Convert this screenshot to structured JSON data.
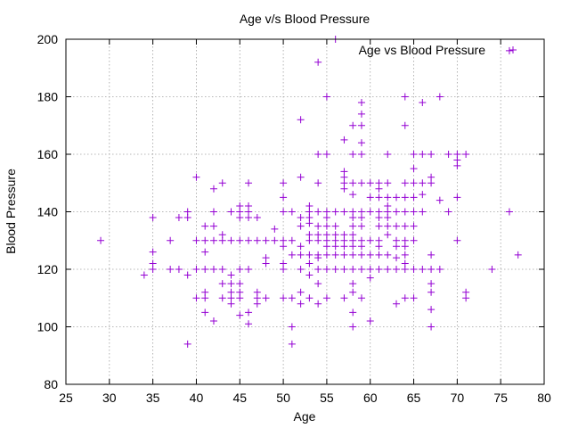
{
  "chart_data": {
    "type": "scatter",
    "title": "Age v/s Blood Pressure",
    "xlabel": "Age",
    "ylabel": "Blood Pressure",
    "xlim": [
      25,
      80
    ],
    "ylim": [
      80,
      200
    ],
    "xticks": [
      25,
      30,
      35,
      40,
      45,
      50,
      55,
      60,
      65,
      70,
      75,
      80
    ],
    "yticks": [
      80,
      100,
      120,
      140,
      160,
      180,
      200
    ],
    "grid": true,
    "legend": "top-right",
    "series": [
      {
        "name": "Age vs Blood Pressure",
        "color": "#9400d3",
        "marker": "plus",
        "points": [
          [
            29,
            130
          ],
          [
            34,
            118
          ],
          [
            35,
            120
          ],
          [
            35,
            122
          ],
          [
            35,
            126
          ],
          [
            35,
            138
          ],
          [
            37,
            120
          ],
          [
            37,
            130
          ],
          [
            38,
            120
          ],
          [
            38,
            138
          ],
          [
            39,
            94
          ],
          [
            39,
            118
          ],
          [
            39,
            138
          ],
          [
            39,
            140
          ],
          [
            40,
            110
          ],
          [
            40,
            120
          ],
          [
            40,
            130
          ],
          [
            40,
            152
          ],
          [
            41,
            105
          ],
          [
            41,
            110
          ],
          [
            41,
            112
          ],
          [
            41,
            120
          ],
          [
            41,
            126
          ],
          [
            41,
            130
          ],
          [
            41,
            135
          ],
          [
            42,
            102
          ],
          [
            42,
            120
          ],
          [
            42,
            130
          ],
          [
            42,
            135
          ],
          [
            42,
            140
          ],
          [
            42,
            148
          ],
          [
            43,
            110
          ],
          [
            43,
            115
          ],
          [
            43,
            120
          ],
          [
            43,
            130
          ],
          [
            43,
            132
          ],
          [
            43,
            150
          ],
          [
            44,
            108
          ],
          [
            44,
            110
          ],
          [
            44,
            112
          ],
          [
            44,
            115
          ],
          [
            44,
            118
          ],
          [
            44,
            130
          ],
          [
            44,
            140
          ],
          [
            45,
            104
          ],
          [
            45,
            110
          ],
          [
            45,
            112
          ],
          [
            45,
            115
          ],
          [
            45,
            120
          ],
          [
            45,
            130
          ],
          [
            45,
            138
          ],
          [
            45,
            140
          ],
          [
            45,
            142
          ],
          [
            46,
            101
          ],
          [
            46,
            105
          ],
          [
            46,
            120
          ],
          [
            46,
            130
          ],
          [
            46,
            138
          ],
          [
            46,
            140
          ],
          [
            46,
            142
          ],
          [
            46,
            150
          ],
          [
            47,
            108
          ],
          [
            47,
            110
          ],
          [
            47,
            112
          ],
          [
            47,
            130
          ],
          [
            47,
            138
          ],
          [
            48,
            110
          ],
          [
            48,
            122
          ],
          [
            48,
            124
          ],
          [
            48,
            130
          ],
          [
            49,
            130
          ],
          [
            49,
            134
          ],
          [
            50,
            110
          ],
          [
            50,
            120
          ],
          [
            50,
            122
          ],
          [
            50,
            128
          ],
          [
            50,
            130
          ],
          [
            50,
            140
          ],
          [
            50,
            145
          ],
          [
            50,
            150
          ],
          [
            51,
            94
          ],
          [
            51,
            100
          ],
          [
            51,
            110
          ],
          [
            51,
            125
          ],
          [
            51,
            130
          ],
          [
            51,
            140
          ],
          [
            52,
            108
          ],
          [
            52,
            112
          ],
          [
            52,
            120
          ],
          [
            52,
            125
          ],
          [
            52,
            128
          ],
          [
            52,
            135
          ],
          [
            52,
            138
          ],
          [
            52,
            152
          ],
          [
            52,
            172
          ],
          [
            53,
            110
          ],
          [
            53,
            118
          ],
          [
            53,
            122
          ],
          [
            53,
            125
          ],
          [
            53,
            130
          ],
          [
            53,
            132
          ],
          [
            53,
            136
          ],
          [
            53,
            138
          ],
          [
            53,
            140
          ],
          [
            53,
            142
          ],
          [
            54,
            108
          ],
          [
            54,
            115
          ],
          [
            54,
            120
          ],
          [
            54,
            124
          ],
          [
            54,
            125
          ],
          [
            54,
            130
          ],
          [
            54,
            132
          ],
          [
            54,
            135
          ],
          [
            54,
            140
          ],
          [
            54,
            150
          ],
          [
            54,
            160
          ],
          [
            54,
            192
          ],
          [
            55,
            110
          ],
          [
            55,
            120
          ],
          [
            55,
            125
          ],
          [
            55,
            128
          ],
          [
            55,
            130
          ],
          [
            55,
            132
          ],
          [
            55,
            135
          ],
          [
            55,
            138
          ],
          [
            55,
            140
          ],
          [
            55,
            160
          ],
          [
            55,
            180
          ],
          [
            56,
            120
          ],
          [
            56,
            125
          ],
          [
            56,
            128
          ],
          [
            56,
            130
          ],
          [
            56,
            132
          ],
          [
            56,
            135
          ],
          [
            56,
            140
          ],
          [
            56,
            200
          ],
          [
            57,
            110
          ],
          [
            57,
            120
          ],
          [
            57,
            125
          ],
          [
            57,
            128
          ],
          [
            57,
            130
          ],
          [
            57,
            132
          ],
          [
            57,
            140
          ],
          [
            57,
            148
          ],
          [
            57,
            150
          ],
          [
            57,
            152
          ],
          [
            57,
            154
          ],
          [
            57,
            165
          ],
          [
            58,
            100
          ],
          [
            58,
            105
          ],
          [
            58,
            112
          ],
          [
            58,
            115
          ],
          [
            58,
            120
          ],
          [
            58,
            125
          ],
          [
            58,
            128
          ],
          [
            58,
            130
          ],
          [
            58,
            132
          ],
          [
            58,
            135
          ],
          [
            58,
            138
          ],
          [
            58,
            140
          ],
          [
            58,
            146
          ],
          [
            58,
            150
          ],
          [
            58,
            160
          ],
          [
            58,
            170
          ],
          [
            59,
            110
          ],
          [
            59,
            120
          ],
          [
            59,
            125
          ],
          [
            59,
            128
          ],
          [
            59,
            130
          ],
          [
            59,
            135
          ],
          [
            59,
            138
          ],
          [
            59,
            140
          ],
          [
            59,
            150
          ],
          [
            59,
            160
          ],
          [
            59,
            164
          ],
          [
            59,
            170
          ],
          [
            59,
            174
          ],
          [
            59,
            178
          ],
          [
            60,
            102
          ],
          [
            60,
            117
          ],
          [
            60,
            120
          ],
          [
            60,
            125
          ],
          [
            60,
            130
          ],
          [
            60,
            140
          ],
          [
            60,
            145
          ],
          [
            60,
            150
          ],
          [
            61,
            120
          ],
          [
            61,
            125
          ],
          [
            61,
            128
          ],
          [
            61,
            130
          ],
          [
            61,
            135
          ],
          [
            61,
            138
          ],
          [
            61,
            140
          ],
          [
            61,
            145
          ],
          [
            61,
            148
          ],
          [
            61,
            150
          ],
          [
            62,
            120
          ],
          [
            62,
            125
          ],
          [
            62,
            132
          ],
          [
            62,
            135
          ],
          [
            62,
            138
          ],
          [
            62,
            140
          ],
          [
            62,
            142
          ],
          [
            62,
            145
          ],
          [
            62,
            150
          ],
          [
            62,
            160
          ],
          [
            63,
            108
          ],
          [
            63,
            120
          ],
          [
            63,
            124
          ],
          [
            63,
            128
          ],
          [
            63,
            130
          ],
          [
            63,
            135
          ],
          [
            63,
            140
          ],
          [
            63,
            145
          ],
          [
            64,
            110
          ],
          [
            64,
            120
          ],
          [
            64,
            122
          ],
          [
            64,
            125
          ],
          [
            64,
            128
          ],
          [
            64,
            130
          ],
          [
            64,
            135
          ],
          [
            64,
            140
          ],
          [
            64,
            145
          ],
          [
            64,
            150
          ],
          [
            64,
            170
          ],
          [
            64,
            180
          ],
          [
            65,
            110
          ],
          [
            65,
            120
          ],
          [
            65,
            130
          ],
          [
            65,
            135
          ],
          [
            65,
            140
          ],
          [
            65,
            145
          ],
          [
            65,
            150
          ],
          [
            65,
            155
          ],
          [
            65,
            160
          ],
          [
            66,
            120
          ],
          [
            66,
            140
          ],
          [
            66,
            146
          ],
          [
            66,
            150
          ],
          [
            66,
            160
          ],
          [
            66,
            178
          ],
          [
            67,
            100
          ],
          [
            67,
            106
          ],
          [
            67,
            112
          ],
          [
            67,
            115
          ],
          [
            67,
            120
          ],
          [
            67,
            125
          ],
          [
            67,
            150
          ],
          [
            67,
            152
          ],
          [
            67,
            160
          ],
          [
            68,
            120
          ],
          [
            68,
            144
          ],
          [
            68,
            180
          ],
          [
            69,
            140
          ],
          [
            69,
            160
          ],
          [
            70,
            130
          ],
          [
            70,
            145
          ],
          [
            70,
            156
          ],
          [
            70,
            158
          ],
          [
            70,
            160
          ],
          [
            71,
            110
          ],
          [
            71,
            112
          ],
          [
            71,
            160
          ],
          [
            74,
            120
          ],
          [
            76,
            140
          ],
          [
            76,
            196
          ],
          [
            77,
            125
          ]
        ]
      }
    ]
  }
}
